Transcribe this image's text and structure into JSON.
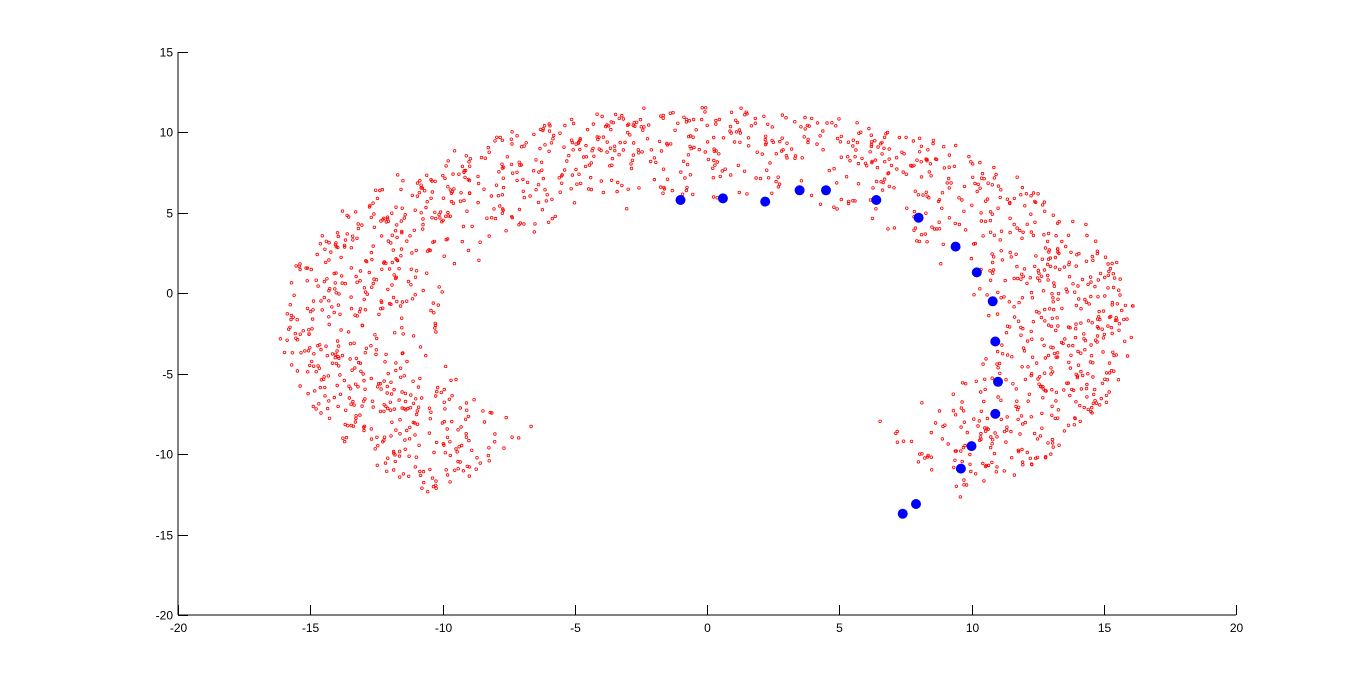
{
  "chart_data": {
    "type": "scatter",
    "title": "",
    "xlabel": "",
    "ylabel": "",
    "xlim": [
      -20,
      20
    ],
    "ylim": [
      -20,
      15
    ],
    "xticks": [
      -20,
      -15,
      -10,
      -5,
      0,
      5,
      10,
      15,
      20
    ],
    "yticks": [
      -20,
      -15,
      -10,
      -5,
      0,
      5,
      10,
      15
    ],
    "grid": false,
    "legend": "none",
    "series": [
      {
        "marker": "dot",
        "color": "#ff0000",
        "distribution": {
          "shape": "annulus",
          "center": [
            0,
            -2
          ],
          "inner_radius": [
            9.5,
            7.0
          ],
          "outer_radius": [
            16.0,
            13.5
          ],
          "gap_angles_deg": [
            -128,
            -52
          ],
          "count": 1600
        }
      },
      {
        "marker": "filled-circle",
        "color": "#0000ff",
        "x": [
          -1.0,
          0.6,
          2.2,
          3.5,
          4.5,
          6.4,
          8.0,
          9.4,
          10.2,
          10.8,
          10.9,
          11.0,
          10.9,
          10.0,
          9.6,
          7.9,
          7.4
        ],
        "y": [
          5.8,
          5.9,
          5.7,
          6.4,
          6.4,
          5.8,
          4.7,
          2.9,
          1.3,
          -0.5,
          -3.0,
          -5.5,
          -7.5,
          -9.5,
          -10.9,
          -13.1,
          -13.7
        ]
      }
    ]
  }
}
